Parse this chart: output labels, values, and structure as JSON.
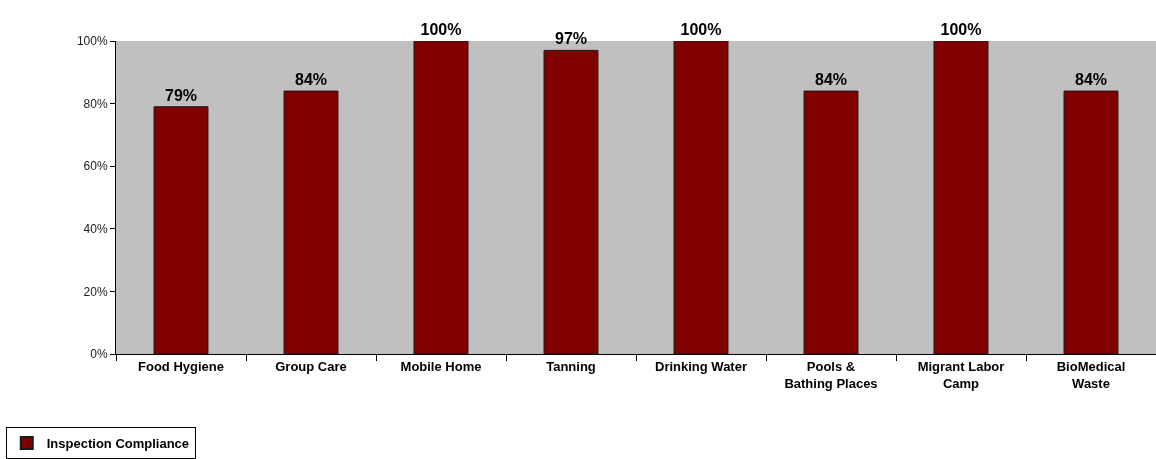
{
  "chart_data": {
    "type": "bar",
    "categories": [
      "Food Hygiene",
      "Group Care",
      "Mobile Home",
      "Tanning",
      "Drinking Water",
      "Pools & Bathing Places",
      "Migrant Labor Camp",
      "BioMedical Waste"
    ],
    "series": [
      {
        "name": "Inspection Compliance",
        "color": "#800000",
        "values": [
          79,
          84,
          100,
          97,
          100,
          84,
          100,
          84
        ],
        "value_labels": [
          "79%",
          "84%",
          "100%",
          "97%",
          "100%",
          "84%",
          "100%",
          "84%"
        ]
      }
    ],
    "ylim": [
      0,
      100
    ],
    "yticks": [
      {
        "value": 0,
        "label": "0%"
      },
      {
        "value": 20,
        "label": "20%"
      },
      {
        "value": 40,
        "label": "40%"
      },
      {
        "value": 60,
        "label": "60%"
      },
      {
        "value": 80,
        "label": "80%"
      },
      {
        "value": 100,
        "label": "100%"
      }
    ],
    "legend": "bottom left"
  }
}
